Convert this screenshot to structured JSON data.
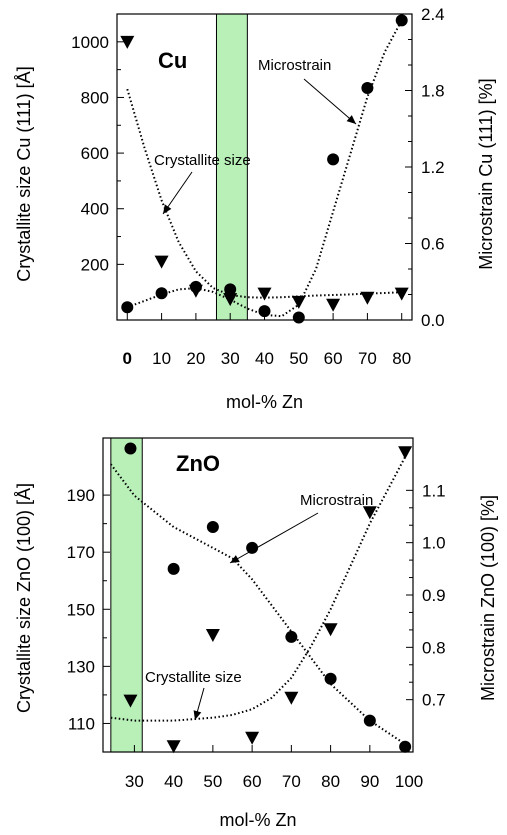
{
  "chart_data": [
    {
      "type": "scatter",
      "panel_title": "Cu",
      "xlabel": "mol-% Zn",
      "ylabel": "Crystallite size Cu (111) [Å]",
      "y2label": "Microstrain Cu (111) [%]",
      "xlim": [
        -3,
        83
      ],
      "ylim": [
        0,
        1100
      ],
      "y2lim": [
        0,
        2.4
      ],
      "xticks": [
        "0",
        "10",
        "20",
        "30",
        "40",
        "50",
        "60",
        "70",
        "80"
      ],
      "yticks": [
        "200",
        "400",
        "600",
        "800",
        "1000"
      ],
      "y2ticks": [
        "0.0",
        "0.6",
        "1.2",
        "1.8",
        "2.4"
      ],
      "highlight_band": {
        "x": [
          26,
          35
        ],
        "color": "#b8f0b8"
      },
      "annotations": {
        "label": "Cu",
        "microstrain": "Microstrain",
        "crystallite": "Crystallite size"
      },
      "series": [
        {
          "name": "Crystallite size",
          "axis": "left",
          "marker": "triangle-down",
          "x": [
            0,
            10,
            20,
            30,
            40,
            50,
            60,
            70,
            80
          ],
          "y": [
            1000,
            210,
            105,
            75,
            95,
            65,
            55,
            80,
            95
          ]
        },
        {
          "name": "Microstrain",
          "axis": "right",
          "marker": "circle",
          "x": [
            0,
            10,
            20,
            30,
            40,
            50,
            60,
            70,
            80
          ],
          "y": [
            0.1,
            0.21,
            0.26,
            0.24,
            0.07,
            0.02,
            1.26,
            1.82,
            2.35
          ]
        }
      ],
      "fits": {
        "crystallite": {
          "x": [
            0,
            5,
            10,
            15,
            20,
            25,
            30,
            35,
            40,
            45,
            50,
            55,
            60,
            65,
            70,
            75,
            80
          ],
          "y": [
            830,
            620,
            430,
            280,
            175,
            115,
            90,
            82,
            80,
            82,
            85,
            88,
            90,
            92,
            95,
            97,
            100
          ]
        },
        "microstrain": {
          "x": [
            0,
            5,
            10,
            15,
            20,
            25,
            30,
            35,
            40,
            45,
            50,
            55,
            60,
            65,
            70,
            75,
            80
          ],
          "y": [
            0.1,
            0.15,
            0.2,
            0.24,
            0.25,
            0.22,
            0.16,
            0.09,
            0.04,
            0.03,
            0.12,
            0.4,
            0.85,
            1.3,
            1.75,
            2.1,
            2.35
          ]
        }
      }
    },
    {
      "type": "scatter",
      "panel_title": "ZnO",
      "xlabel": "mol-% Zn",
      "ylabel": "Crystallite size ZnO (100) [Å]",
      "y2label": "Microstrain ZnO (100) [%]",
      "xlim": [
        22,
        101
      ],
      "ylim": [
        100,
        210
      ],
      "y2lim": [
        0.6,
        1.2
      ],
      "xticks": [
        "30",
        "40",
        "50",
        "60",
        "70",
        "80",
        "90",
        "100"
      ],
      "yticks": [
        "110",
        "130",
        "150",
        "170",
        "190"
      ],
      "y2ticks": [
        "0.7",
        "0.8",
        "0.9",
        "1.0",
        "1.1"
      ],
      "highlight_band": {
        "x": [
          24,
          32
        ],
        "color": "#b8f0b8"
      },
      "annotations": {
        "label": "ZnO",
        "microstrain": "Microstrain",
        "crystallite": "Crystallite size"
      },
      "series": [
        {
          "name": "Crystallite size",
          "axis": "left",
          "marker": "triangle-down",
          "x": [
            29,
            40,
            50,
            60,
            70,
            80,
            90,
            99
          ],
          "y": [
            118,
            102,
            141,
            105,
            119,
            143,
            184,
            205
          ]
        },
        {
          "name": "Microstrain",
          "axis": "right",
          "marker": "circle",
          "x": [
            29,
            40,
            50,
            60,
            70,
            80,
            90,
            99
          ],
          "y": [
            1.18,
            0.95,
            1.03,
            0.99,
            0.82,
            0.74,
            0.66,
            0.61
          ]
        }
      ],
      "fits": {
        "crystallite": {
          "x": [
            24,
            30,
            40,
            50,
            55,
            60,
            65,
            70,
            75,
            80,
            85,
            90,
            95,
            100
          ],
          "y": [
            112,
            111,
            111,
            112,
            113,
            115,
            119,
            126,
            137,
            150,
            165,
            180,
            193,
            206
          ]
        },
        "microstrain": {
          "x": [
            24,
            30,
            35,
            40,
            50,
            55,
            60,
            70,
            80,
            90,
            100
          ],
          "y": [
            1.15,
            1.09,
            1.06,
            1.03,
            0.99,
            0.97,
            0.93,
            0.83,
            0.73,
            0.66,
            0.61
          ]
        }
      }
    }
  ]
}
